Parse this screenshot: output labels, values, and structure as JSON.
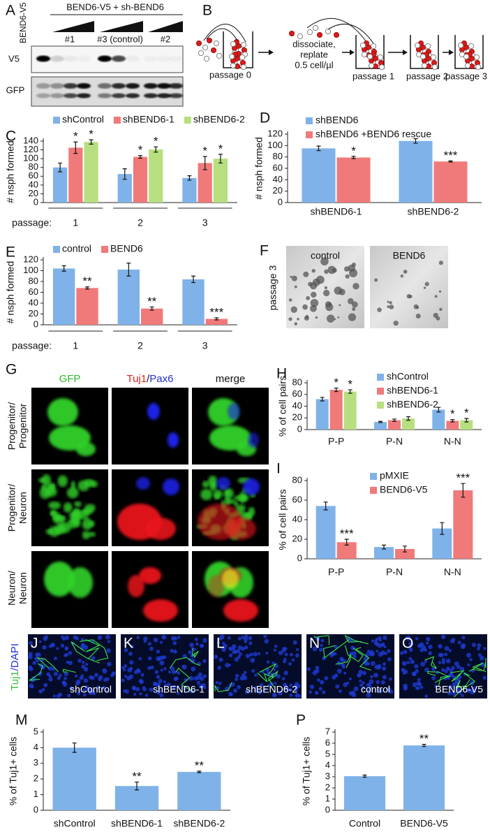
{
  "panels": {
    "A": {
      "letter": "A",
      "lane": "BEND6-V5",
      "header": "BEND6-V5 + sh-BEND6",
      "groups": [
        "#1",
        "#3 (control)",
        "#2"
      ],
      "rows": [
        "V5",
        "GFP"
      ]
    },
    "B": {
      "letter": "B",
      "stages": [
        "passage 0",
        "passage 1",
        "passage 2",
        "passage 3"
      ],
      "step": [
        "dissociate,",
        "replate",
        "0.5 cell/µl"
      ]
    },
    "F": {
      "letter": "F",
      "side": "passage 3",
      "images": [
        "control",
        "BEND6"
      ]
    },
    "G": {
      "letter": "G",
      "columns": [
        "GFP",
        [
          "Tuj1",
          "/",
          "Pax6"
        ],
        "merge"
      ],
      "rows": [
        [
          "Progenitor/",
          "Progenitor"
        ],
        [
          "Progenitor/",
          "Neuron"
        ],
        [
          "Neuron/",
          "Neuron"
        ]
      ]
    },
    "JO": {
      "side": [
        "Tuj1",
        "/DAPI"
      ],
      "images": [
        {
          "letter": "J",
          "caption": "shControl"
        },
        {
          "letter": "K",
          "caption": "shBEND6-1"
        },
        {
          "letter": "L",
          "caption": "shBEND6-2"
        },
        {
          "letter": "N",
          "caption": "control"
        },
        {
          "letter": "O",
          "caption": "BEND6-V5"
        }
      ]
    }
  },
  "chart_data": [
    {
      "type": "bar",
      "panel": "C",
      "ylabel": "# nsph formed",
      "xlabel": "passage:",
      "categories": [
        "1",
        "2",
        "3"
      ],
      "legend": "top",
      "ylim": [
        0,
        140
      ],
      "yticks": [
        0,
        20,
        40,
        60,
        80,
        100,
        120,
        140
      ],
      "series": [
        {
          "name": "shControl",
          "color": "#7fb2e8",
          "values": [
            80,
            65,
            56
          ],
          "errors": [
            10,
            12,
            5
          ],
          "annotations": [
            null,
            null,
            null
          ]
        },
        {
          "name": "shBEND6-1",
          "color": "#f07a7a",
          "values": [
            125,
            104,
            90
          ],
          "errors": [
            13,
            3,
            15
          ],
          "annotations": [
            "*",
            "*",
            "*"
          ]
        },
        {
          "name": "shBEND6-2",
          "color": "#b7df7f",
          "values": [
            138,
            121,
            100
          ],
          "errors": [
            5,
            6,
            10
          ],
          "annotations": [
            "*",
            "*",
            "*"
          ]
        }
      ]
    },
    {
      "type": "bar",
      "panel": "D",
      "ylabel": "# nsph formed",
      "categories": [
        "shBEND6-1",
        "shBEND6-2"
      ],
      "legend": "upper right",
      "ylim": [
        0,
        120
      ],
      "yticks": [
        0,
        20,
        40,
        60,
        80,
        100,
        120
      ],
      "series": [
        {
          "name": "shBEND6",
          "color": "#7fb2e8",
          "values": [
            95,
            108
          ],
          "errors": [
            4,
            4
          ],
          "annotations": [
            null,
            null
          ]
        },
        {
          "name": "shBEND6 +BEND6 rescue",
          "color": "#f07a7a",
          "values": [
            79,
            72
          ],
          "errors": [
            2,
            1
          ],
          "annotations": [
            "*",
            "***"
          ]
        }
      ]
    },
    {
      "type": "bar",
      "panel": "E",
      "ylabel": "# nsph formed",
      "xlabel": "passage:",
      "categories": [
        "1",
        "2",
        "3"
      ],
      "legend": "top",
      "ylim": [
        0,
        120
      ],
      "yticks": [
        0,
        20,
        40,
        60,
        80,
        100,
        120
      ],
      "series": [
        {
          "name": "control",
          "color": "#7fb2e8",
          "values": [
            104,
            102,
            84
          ],
          "errors": [
            5,
            12,
            6
          ],
          "annotations": [
            null,
            null,
            null
          ]
        },
        {
          "name": "BEND6",
          "color": "#f07a7a",
          "values": [
            68,
            30,
            11
          ],
          "errors": [
            2,
            3,
            2
          ],
          "annotations": [
            "**",
            "**",
            "***"
          ]
        }
      ]
    },
    {
      "type": "bar",
      "panel": "H",
      "ylabel": "% of cell pairs",
      "categories": [
        "P-P",
        "P-N",
        "N-N"
      ],
      "legend": "upper right",
      "ylim": [
        0,
        80
      ],
      "yticks": [
        0,
        20,
        40,
        60,
        80
      ],
      "series": [
        {
          "name": "shControl",
          "color": "#7fb2e8",
          "values": [
            52,
            13,
            34
          ],
          "errors": [
            3,
            1,
            4
          ],
          "annotations": [
            null,
            null,
            null
          ]
        },
        {
          "name": "shBEND6-1",
          "color": "#f07a7a",
          "values": [
            68,
            16,
            15
          ],
          "errors": [
            3,
            2,
            2
          ],
          "annotations": [
            "*",
            null,
            "*"
          ]
        },
        {
          "name": "shBEND6-2",
          "color": "#b7df7f",
          "values": [
            65,
            19,
            16
          ],
          "errors": [
            3,
            3,
            3
          ],
          "annotations": [
            "*",
            null,
            "*"
          ]
        }
      ]
    },
    {
      "type": "bar",
      "panel": "I",
      "ylabel": "% of cell pairs",
      "categories": [
        "P-P",
        "P-N",
        "N-N"
      ],
      "legend": "upper right",
      "ylim": [
        0,
        80
      ],
      "yticks": [
        0,
        20,
        40,
        60,
        80
      ],
      "series": [
        {
          "name": "pMXIE",
          "color": "#7fb2e8",
          "values": [
            54,
            12,
            31
          ],
          "errors": [
            4,
            2,
            6
          ],
          "annotations": [
            null,
            null,
            null
          ]
        },
        {
          "name": "BEND6-V5",
          "color": "#f07a7a",
          "values": [
            17,
            10,
            70
          ],
          "errors": [
            3,
            3,
            7
          ],
          "annotations": [
            "***",
            null,
            "***"
          ]
        }
      ]
    },
    {
      "type": "bar",
      "panel": "M",
      "ylabel": "% of Tuj1+ cells",
      "categories": [
        "shControl",
        "shBEND6-1",
        "shBEND6-2"
      ],
      "ylim": [
        0,
        5
      ],
      "yticks": [
        0,
        1,
        2,
        3,
        4,
        5
      ],
      "color": "#7fb2e8",
      "values": [
        4.0,
        1.55,
        2.45
      ],
      "errors": [
        0.3,
        0.25,
        0.05
      ],
      "annotations": [
        null,
        "**",
        "**"
      ]
    },
    {
      "type": "bar",
      "panel": "P",
      "ylabel": "% of Tuj1+ cells",
      "categories": [
        "Control",
        "BEND6-V5"
      ],
      "ylim": [
        0,
        7
      ],
      "yticks": [
        0,
        1,
        2,
        3,
        4,
        5,
        6,
        7
      ],
      "color": "#7fb2e8",
      "values": [
        3.05,
        5.8
      ],
      "errors": [
        0.1,
        0.1
      ],
      "annotations": [
        null,
        "**"
      ]
    }
  ]
}
